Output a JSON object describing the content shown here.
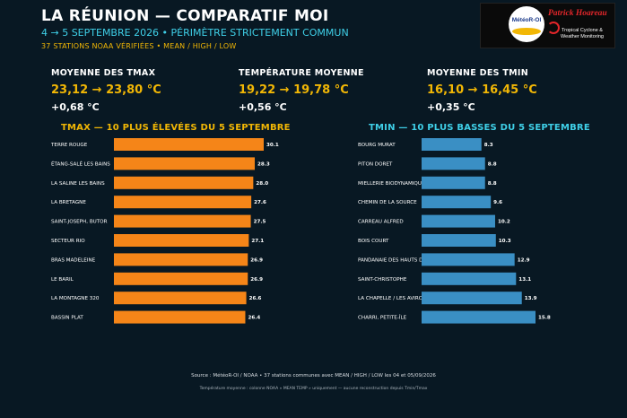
{
  "header": {
    "title": "LA RÉUNION — COMPARATIF MOI",
    "subtitle": "4 → 5 SEPTEMBRE 2026 • PÉRIMÈTRE STRICTEMENT COMMUN",
    "meta": "37 STATIONS NOAA VÉRIFIÉES • MEAN / HIGH / LOW"
  },
  "logo": {
    "badge_text": "MétéoR-OI",
    "name": "Patrick Hoareau",
    "tagline_1": "Tropical Cyclone &",
    "tagline_2": "Weather Monitoring"
  },
  "stats": [
    {
      "label": "MOYENNE DES TMAX",
      "range": "23,12 → 23,80 °C",
      "delta": "+0,68 °C"
    },
    {
      "label": "TEMPÉRATURE MOYENNE",
      "range": "19,22 → 19,78 °C",
      "delta": "+0,56 °C"
    },
    {
      "label": "MOYENNE DES TMIN",
      "range": "16,10 → 16,45 °C",
      "delta": "+0,35 °C"
    }
  ],
  "panels": {
    "tmax_title": "TMAX — 10 PLUS ÉLEVÉES DU 5 SEPTEMBRE",
    "tmin_title": "TMIN — 10 PLUS BASSES DU 5 SEPTEMBRE"
  },
  "colors": {
    "tmax_bar": "#f58518",
    "tmin_bar": "#3a8fc4",
    "tmax_title": "#f2b705",
    "tmin_title": "#3fd0e8"
  },
  "chart_data": [
    {
      "type": "bar",
      "orientation": "horizontal",
      "categories": [
        "TERRE ROUGE",
        "ÉTANG-SALÉ LES BAINS",
        "LA SALINE LES BAINS",
        "LA BRETAGNE",
        "SAINT-JOSEPH, BUTOR",
        "SECTEUR RIO",
        "BRAS MADELEINE",
        "LE BARIL",
        "LA MONTAGNE 320",
        "BASSIN PLAT"
      ],
      "values": [
        30.1,
        28.3,
        28.0,
        27.6,
        27.5,
        27.1,
        26.9,
        26.9,
        26.6,
        26.4
      ],
      "value_labels": [
        "30.1",
        "28.3",
        "28.0",
        "27.6",
        "27.5",
        "27.1",
        "26.9",
        "26.9",
        "26.6",
        "26.4"
      ],
      "xlim": [
        0,
        30.1
      ]
    },
    {
      "type": "bar",
      "orientation": "horizontal",
      "categories": [
        "BOURG MURAT",
        "PITON DORET",
        "MIELLERIE BIODYNAMIQUE",
        "CHEMIN DE LA SOURCE",
        "CARREAU ALFRED",
        "BOIS COURT",
        "PANDANAIE DES HAUTS D",
        "SAINT-CHRISTOPHE",
        "LA CHAPELLE / LES AVIRONS",
        "CHARRI, PETITE-ÎLE"
      ],
      "values": [
        8.3,
        8.8,
        8.8,
        9.6,
        10.2,
        10.3,
        12.9,
        13.1,
        13.9,
        15.8
      ],
      "value_labels": [
        "8.3",
        "8.8",
        "8.8",
        "9.6",
        "10.2",
        "10.3",
        "12.9",
        "13.1",
        "13.9",
        "15.8"
      ],
      "xlim": [
        0,
        15.8
      ]
    }
  ],
  "footer": {
    "source": "Source : MétéoR-OI / NOAA • 37 stations communes avec MEAN / HIGH / LOW les 04 et 05/09/2026",
    "note": "Température moyenne : colonne NOAA « MEAN TEMP » uniquement — aucune reconstruction depuis Tmin/Tmax"
  }
}
